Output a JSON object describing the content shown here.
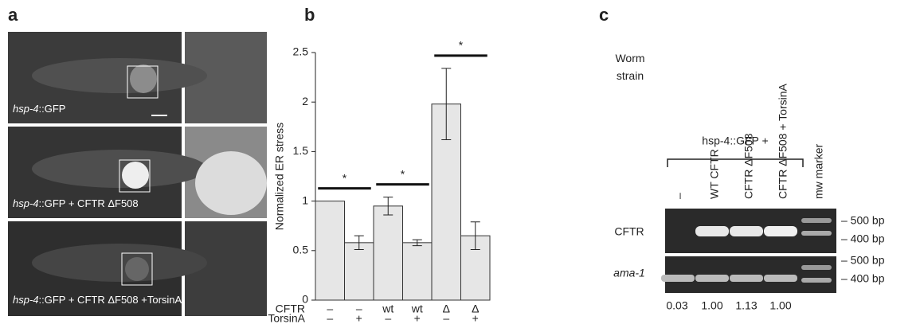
{
  "panel_labels": [
    "a",
    "b",
    "c"
  ],
  "panel_a": {
    "captions": [
      {
        "gene": "hsp-4",
        "text": "::GFP"
      },
      {
        "gene": "hsp-4",
        "text": "::GFP + CFTR ΔF508"
      },
      {
        "gene": "hsp-4",
        "text": "::GFP + CFTR ΔF508 +TorsinA"
      }
    ]
  },
  "chart_data": {
    "type": "bar",
    "ylabel": "Normalized ER stress",
    "categories": [
      null,
      null,
      null,
      null,
      null,
      null
    ],
    "values": [
      1,
      0.58,
      0.95,
      0.58,
      1.98,
      0.65
    ],
    "errors": [
      null,
      0.07,
      0.09,
      0.03,
      0.36,
      0.14
    ],
    "color": "#e6e6e6",
    "ylim": [
      0,
      2.5
    ],
    "yticks": [
      0,
      0.5,
      1,
      1.5,
      2,
      2.5
    ],
    "row_labels": [
      {
        "name": "CFTR",
        "values": [
          "–",
          "–",
          "wt",
          "wt",
          "Δ",
          "Δ"
        ]
      },
      {
        "name": "TorsinA",
        "values": [
          "–",
          "+",
          "–",
          "+",
          "–",
          "+"
        ]
      }
    ],
    "significance": [
      {
        "from": 0,
        "to": 1,
        "text": "*"
      },
      {
        "from": 2,
        "to": 3,
        "text": "*"
      },
      {
        "from": 4,
        "to": 5,
        "text": "*"
      }
    ]
  },
  "panel_c": {
    "row_header": "Worm strain",
    "strain_header": "hsp-4::GFP +",
    "lanes": [
      "–",
      "WT CFTR",
      "CFTR ΔF508",
      "CFTR ΔF508 + TorsinA",
      "mw marker"
    ],
    "gels": [
      {
        "name": "CFTR",
        "markers": [
          "– 500 bp",
          "– 400 bp"
        ]
      },
      {
        "name": "ama-1",
        "markers": [
          "– 500 bp",
          "– 400 bp"
        ]
      }
    ],
    "quantification": [
      "0.03",
      "1.00",
      "1.13",
      "1.00"
    ]
  }
}
